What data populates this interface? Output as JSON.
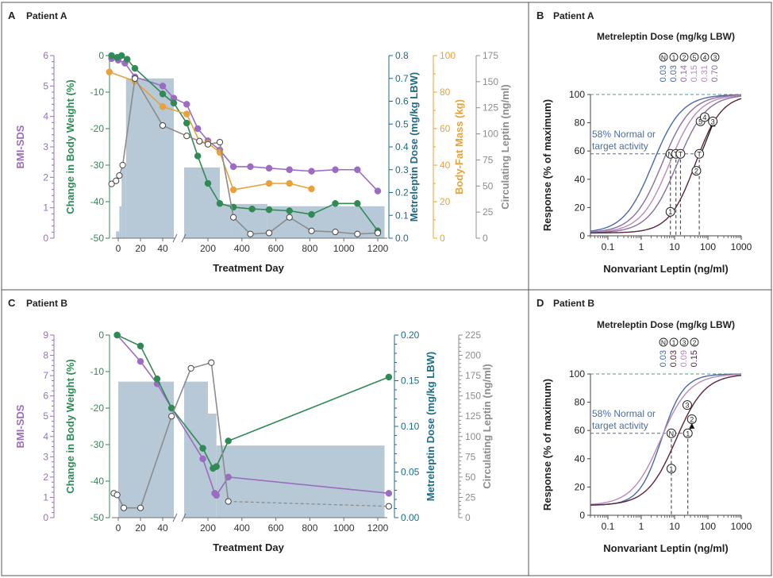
{
  "colors": {
    "purple": "#9b6cc2",
    "green": "#2f8a55",
    "teal": "#1f6b84",
    "orange": "#e8a23a",
    "gray": "#8c8c8c",
    "bar": "#b7c9d6",
    "axis": "#6f6f6f",
    "curve_blue": "#4a69a8",
    "curve_mid": "#8a6ea3",
    "curve_pink": "#b88ab8",
    "curve_dark": "#5a2540",
    "dashed_teal": "#4e9a8a",
    "note_blue": "#4a6e9c"
  },
  "chart_data": [
    {
      "id": "A",
      "panel_letter": "A",
      "panel_title": "Patient A",
      "type": "line",
      "xlabel": "Treatment Day",
      "x_ticks": [
        "0",
        "20",
        "40",
        "200",
        "400",
        "600",
        "800",
        "1000",
        "1200"
      ],
      "axes": {
        "bmi": {
          "label": "BMI-SDS",
          "ticks": [
            "0",
            "1",
            "2",
            "3",
            "4",
            "5",
            "6"
          ],
          "range": [
            0,
            6
          ]
        },
        "weight": {
          "label": "Change in Body Weight (%)",
          "ticks": [
            "0",
            "-10",
            "-20",
            "-30",
            "-40",
            "-50"
          ],
          "range": [
            -50,
            0
          ]
        },
        "dose": {
          "label": "Metreleptin Dose (mg/kg LBW)",
          "ticks": [
            "0.0",
            "0.1",
            "0.2",
            "0.3",
            "0.4",
            "0.5",
            "0.6",
            "0.7",
            "0.8"
          ],
          "range": [
            0,
            0.8
          ]
        },
        "fat": {
          "label": "Body-Fat Mass (kg)",
          "ticks": [
            "0",
            "20",
            "40",
            "60",
            "80",
            "100"
          ],
          "range": [
            0,
            100
          ]
        },
        "leptin": {
          "label": "Circulating Leptin (ng/ml)",
          "ticks": [
            "0",
            "25",
            "50",
            "75",
            "100",
            "125",
            "150",
            "175"
          ],
          "range": [
            0,
            175
          ]
        }
      },
      "dose_steps": [
        {
          "from": -8,
          "to": -2,
          "dose": 0.0
        },
        {
          "from": -2,
          "to": 1,
          "dose": 0.03
        },
        {
          "from": 1,
          "to": 3,
          "dose": 0.14
        },
        {
          "from": 3,
          "to": 7,
          "dose": 0.31
        },
        {
          "from": 7,
          "to": 50,
          "dose": 0.7
        },
        {
          "from": 60,
          "to": 270,
          "dose": 0.31
        },
        {
          "from": 270,
          "to": 340,
          "dose": 0.15
        },
        {
          "from": 340,
          "to": 550,
          "dose": 0.15
        },
        {
          "from": 550,
          "to": 1240,
          "dose": 0.14
        }
      ],
      "series": [
        {
          "name": "BMI-SDS",
          "color_key": "purple",
          "axis": "bmi",
          "marker": "filled",
          "points": [
            [
              -6,
              5.9
            ],
            [
              0,
              5.85
            ],
            [
              6,
              5.75
            ],
            [
              15,
              5.3
            ],
            [
              40,
              5.0
            ],
            [
              50,
              4.6
            ],
            [
              75,
              4.4
            ],
            [
              140,
              3.6
            ],
            [
              200,
              3.2
            ],
            [
              270,
              2.9
            ],
            [
              350,
              2.35
            ],
            [
              450,
              2.35
            ],
            [
              560,
              2.3
            ],
            [
              680,
              2.25
            ],
            [
              810,
              2.2
            ],
            [
              950,
              2.25
            ],
            [
              1080,
              2.25
            ],
            [
              1200,
              1.55
            ]
          ]
        },
        {
          "name": "Change in Body Weight",
          "color_key": "green",
          "axis": "weight",
          "marker": "filled",
          "points": [
            [
              -6,
              0
            ],
            [
              -1,
              -0.5
            ],
            [
              3,
              0
            ],
            [
              8,
              -1
            ],
            [
              15,
              -3.5
            ],
            [
              40,
              -10.5
            ],
            [
              50,
              -13
            ],
            [
              75,
              -18.5
            ],
            [
              140,
              -27.5
            ],
            [
              200,
              -35
            ],
            [
              270,
              -40.5
            ],
            [
              350,
              -41.5
            ],
            [
              460,
              -42
            ],
            [
              560,
              -42.2
            ],
            [
              680,
              -42.5
            ],
            [
              810,
              -43.5
            ],
            [
              950,
              -40.5
            ],
            [
              1080,
              -40.5
            ],
            [
              1200,
              -48
            ]
          ]
        },
        {
          "name": "Body-Fat Mass",
          "color_key": "orange",
          "axis": "fat",
          "marker": "filled",
          "points": [
            [
              -8,
              91
            ],
            [
              15,
              86
            ],
            [
              40,
              72
            ],
            [
              75,
              68
            ],
            [
              150,
              53
            ],
            [
              200,
              52
            ],
            [
              270,
              47
            ],
            [
              350,
              26.5
            ],
            [
              560,
              30
            ],
            [
              680,
              30
            ],
            [
              810,
              27
            ]
          ]
        },
        {
          "name": "Circulating Leptin",
          "color_key": "gray",
          "axis": "leptin",
          "marker": "open",
          "points": [
            [
              -6,
              52
            ],
            [
              -2,
              55
            ],
            [
              1,
              60
            ],
            [
              4,
              70
            ],
            [
              15,
              153
            ],
            [
              40,
              108
            ],
            [
              75,
              98
            ],
            [
              150,
              93
            ],
            [
              200,
              90
            ],
            [
              270,
              92
            ],
            [
              350,
              20
            ],
            [
              450,
              4
            ],
            [
              560,
              5
            ],
            [
              680,
              20
            ],
            [
              810,
              7
            ],
            [
              950,
              6
            ],
            [
              1080,
              4
            ],
            [
              1200,
              5
            ]
          ]
        }
      ]
    },
    {
      "id": "B",
      "panel_letter": "B",
      "panel_title": "Patient A",
      "type": "line",
      "title": "Metreleptin Dose (mg/kg LBW)",
      "xlabel": "Nonvariant Leptin (ng/ml)",
      "ylabel": "Response (% of maximum)",
      "x_ticks": [
        "0.1",
        "1",
        "10",
        "100",
        "1000"
      ],
      "y_ticks": [
        "0",
        "20",
        "40",
        "60",
        "80",
        "100"
      ],
      "xlim": [
        0.03,
        1000
      ],
      "ylim": [
        0,
        100
      ],
      "note_line1": "58% Normal or",
      "note_line2": "target activity",
      "dose_labels": [
        {
          "symbol": "N",
          "value": "0.03",
          "color_key": "curve_blue"
        },
        {
          "symbol": "1",
          "value": "0.03",
          "color_key": "curve_blue"
        },
        {
          "symbol": "2",
          "value": "0.14",
          "color_key": "curve_mid"
        },
        {
          "symbol": "5",
          "value": "0.15",
          "color_key": "curve_pink"
        },
        {
          "symbol": "4",
          "value": "0.31",
          "color_key": "curve_pink"
        },
        {
          "symbol": "3",
          "value": "0.70",
          "color_key": "curve_mid"
        }
      ],
      "curves": [
        {
          "ec50": 2.2,
          "hill": 1.0,
          "color_key": "curve_blue"
        },
        {
          "ec50": 4.2,
          "hill": 1.0,
          "color_key": "curve_mid"
        },
        {
          "ec50": 7.0,
          "hill": 1.0,
          "color_key": "curve_pink"
        },
        {
          "ec50": 12.0,
          "hill": 1.0,
          "color_key": "curve_mid"
        },
        {
          "ec50": 42.0,
          "hill": 1.1,
          "color_key": "curve_dark"
        }
      ],
      "markers": [
        {
          "symbol": "N",
          "x": 7.5,
          "y": 58
        },
        {
          "symbol": "T",
          "x": 11,
          "y": 58
        },
        {
          "symbol": "T",
          "x": 15,
          "y": 58
        },
        {
          "symbol": "T",
          "x": 55,
          "y": 58
        },
        {
          "symbol": "1",
          "x": 7.5,
          "y": 17
        },
        {
          "symbol": "2",
          "x": 45,
          "y": 46
        },
        {
          "symbol": "5",
          "x": 60,
          "y": 81
        },
        {
          "symbol": "4",
          "x": 80,
          "y": 84
        },
        {
          "symbol": "3",
          "x": 140,
          "y": 81
        }
      ],
      "guides_x": [
        7.5,
        11,
        15,
        55
      ]
    },
    {
      "id": "C",
      "panel_letter": "C",
      "panel_title": "Patient B",
      "type": "line",
      "xlabel": "Treatment Day",
      "x_ticks": [
        "0",
        "20",
        "40",
        "200",
        "400",
        "600",
        "800",
        "1000",
        "1200"
      ],
      "axes": {
        "bmi": {
          "label": "BMI-SDS",
          "ticks": [
            "0",
            "1",
            "2",
            "3",
            "4",
            "5",
            "6",
            "7",
            "8",
            "9"
          ],
          "range": [
            0,
            9
          ]
        },
        "weight": {
          "label": "Change in Body Weight (%)",
          "ticks": [
            "0",
            "-10",
            "-20",
            "-30",
            "-40",
            "-50"
          ],
          "range": [
            -50,
            0
          ]
        },
        "dose": {
          "label": "Metreleptin Dose (mg/kg LBW)",
          "ticks": [
            "0.00",
            "0.05",
            "0.10",
            "0.15",
            "0.20"
          ],
          "range": [
            0,
            0.2
          ]
        },
        "leptin": {
          "label": "Circulating Leptin (ng/ml)",
          "ticks": [
            "0",
            "25",
            "50",
            "75",
            "100",
            "125",
            "150",
            "175",
            "200",
            "225"
          ],
          "range": [
            0,
            225
          ]
        }
      },
      "dose_steps": [
        {
          "from": 0,
          "to": 50,
          "dose": 0.149
        },
        {
          "from": 60,
          "to": 200,
          "dose": 0.149
        },
        {
          "from": 200,
          "to": 250,
          "dose": 0.114
        },
        {
          "from": 250,
          "to": 1240,
          "dose": 0.079
        }
      ],
      "series": [
        {
          "name": "BMI-SDS",
          "color_key": "purple",
          "axis": "bmi",
          "marker": "filled",
          "points": [
            [
              -1,
              9.0
            ],
            [
              20,
              7.7
            ],
            [
              35,
              6.6
            ],
            [
              48,
              5.4
            ],
            [
              170,
              2.9
            ],
            [
              240,
              1.2
            ],
            [
              250,
              1.1
            ],
            [
              320,
              2.0
            ],
            [
              1265,
              1.2
            ]
          ]
        },
        {
          "name": "Change in Body Weight",
          "color_key": "green",
          "axis": "weight",
          "marker": "filled",
          "points": [
            [
              -1,
              0
            ],
            [
              20,
              -3
            ],
            [
              35,
              -12
            ],
            [
              48,
              -20
            ],
            [
              170,
              -31
            ],
            [
              230,
              -36.5
            ],
            [
              250,
              -36
            ],
            [
              320,
              -29
            ],
            [
              1265,
              -11.5
            ]
          ]
        },
        {
          "name": "Circulating Leptin",
          "color_key": "gray",
          "axis": "leptin",
          "marker": "open",
          "points": [
            [
              -4,
              30
            ],
            [
              -1,
              28
            ],
            [
              5,
              12
            ],
            [
              20,
              12
            ],
            [
              48,
              125
            ],
            [
              100,
              184
            ],
            [
              220,
              191
            ],
            [
              320,
              20
            ],
            [
              1265,
              14
            ]
          ]
        }
      ]
    },
    {
      "id": "D",
      "panel_letter": "D",
      "panel_title": "Patient B",
      "type": "line",
      "title": "Metreleptin Dose (mg/kg LBW)",
      "xlabel": "Nonvariant Leptin (ng/ml)",
      "ylabel": "Response (% of maximum)",
      "x_ticks": [
        "0.1",
        "1",
        "10",
        "100",
        "1000"
      ],
      "y_ticks": [
        "0",
        "20",
        "40",
        "60",
        "80",
        "100"
      ],
      "xlim": [
        0.03,
        1000
      ],
      "ylim": [
        0,
        100
      ],
      "note_line1": "58% Normal or",
      "note_line2": "target activity",
      "dose_labels": [
        {
          "symbol": "N",
          "value": "0.03",
          "color_key": "curve_blue"
        },
        {
          "symbol": "1",
          "value": "0.03",
          "color_key": "curve_dark"
        },
        {
          "symbol": "3",
          "value": "0.09",
          "color_key": "curve_pink"
        },
        {
          "symbol": "2",
          "value": "0.15",
          "color_key": "curve_dark"
        }
      ],
      "curves": [
        {
          "ec50": 4.0,
          "hill": 1.3,
          "color_key": "curve_blue"
        },
        {
          "ec50": 3.8,
          "hill": 1.0,
          "color_key": "curve_pink"
        },
        {
          "ec50": 11.0,
          "hill": 1.0,
          "color_key": "curve_dark"
        }
      ],
      "markers": [
        {
          "symbol": "N",
          "x": 8.0,
          "y": 58
        },
        {
          "symbol": "1",
          "x": 8.0,
          "y": 33
        },
        {
          "symbol": "1",
          "x": 25,
          "y": 58
        },
        {
          "symbol": "2",
          "x": 33,
          "y": 68
        },
        {
          "symbol": "3",
          "x": 24,
          "y": 78
        }
      ],
      "guides_x": [
        8.0,
        25
      ]
    }
  ]
}
